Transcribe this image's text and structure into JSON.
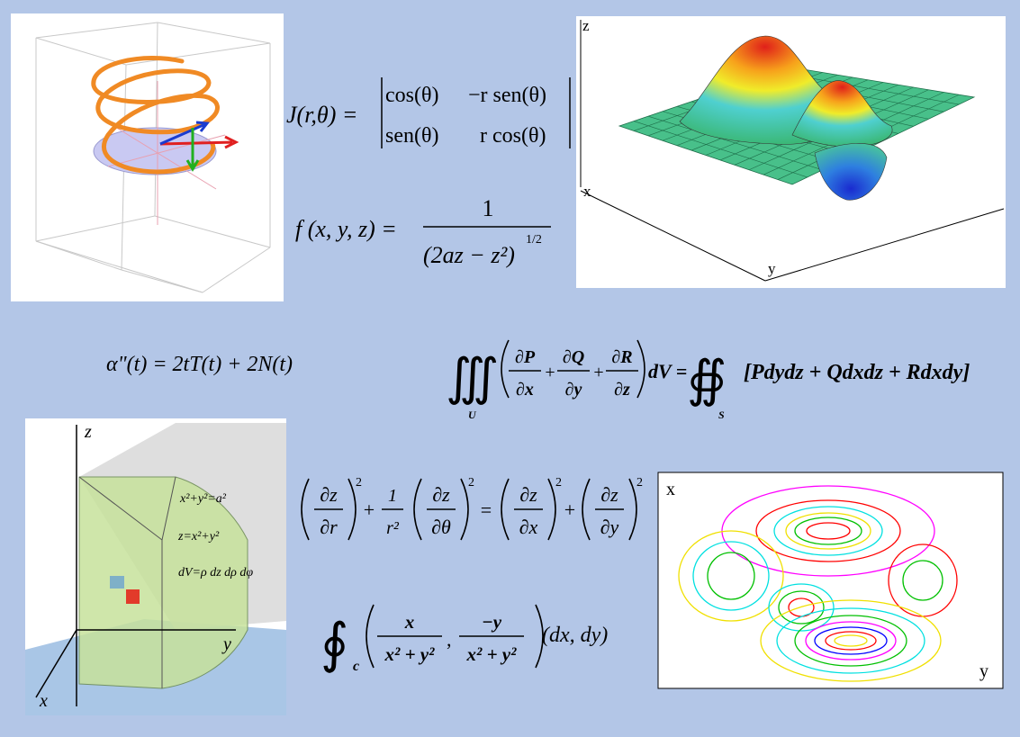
{
  "jacobian": {
    "lhs": "J(r,θ) =",
    "matrix": [
      [
        "cos(θ)",
        "−r sen(θ)"
      ],
      [
        "sen(θ)",
        "r cos(θ)"
      ]
    ]
  },
  "function": {
    "lhs": "f (x, y, z) =",
    "numerator": "1",
    "denominator": "(2az − z²)",
    "exponent": "1/2"
  },
  "acceleration": "α\"(t) = 2tT(t) + 2N(t)",
  "divergence": {
    "triple_integral": "∭",
    "region": "U",
    "terms": [
      {
        "num": "∂P",
        "den": "∂x"
      },
      {
        "num": "∂Q",
        "den": "∂y"
      },
      {
        "num": "∂R",
        "den": "∂z"
      }
    ],
    "plus": "+",
    "middle": "dV =",
    "surface_integral": "∯",
    "surface": "S",
    "rhs": "[Pdydz + Qdxdz + Rdxdy]"
  },
  "polar": {
    "terms": [
      {
        "num": "∂z",
        "den": "∂r"
      },
      {
        "num": "∂z",
        "den": "∂θ"
      },
      {
        "num": "∂z",
        "den": "∂x"
      },
      {
        "num": "∂z",
        "den": "∂y"
      }
    ],
    "power": "2",
    "plus": "+",
    "equals": "=",
    "coefficient": {
      "num": "1",
      "den": "r²"
    }
  },
  "line_integral": {
    "integral": "∮",
    "curve": "c",
    "terms": [
      {
        "num": "x",
        "den": "x² + y²"
      },
      {
        "num": "−y",
        "den": "x² + y²"
      }
    ],
    "comma": ",",
    "differential": "(dx, dy)"
  },
  "figures": {
    "surface_axes": [
      "z",
      "x",
      "y"
    ],
    "cylinder_axes": [
      "z",
      "y",
      "x"
    ],
    "cylinder_labels": [
      "x²+y²=a²",
      "z=x²+y²",
      "dV=ρ dz dρ dφ"
    ],
    "contour_axes": [
      "x",
      "y"
    ]
  }
}
